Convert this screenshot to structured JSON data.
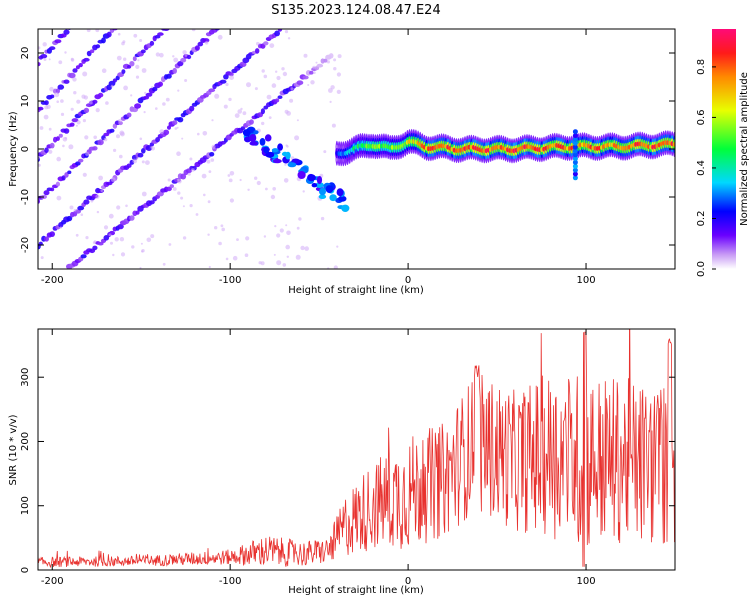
{
  "title": "S135.2023.124.08.47.E24",
  "chart_data": [
    {
      "type": "heatmap",
      "xlabel": "Height of straight line (km)",
      "ylabel": "Frequency (Hz)",
      "xlim": [
        -208,
        150
      ],
      "ylim": [
        -25,
        25
      ],
      "xticks": [
        -200,
        -100,
        0,
        100
      ],
      "yticks": [
        -20,
        -10,
        0,
        10,
        20
      ],
      "colorbar": {
        "label": "Normalized spectral amplitude",
        "range": [
          0,
          0.95
        ],
        "ticks": [
          "0.0",
          "0.2",
          "0.4",
          "0.6",
          "0.8"
        ]
      },
      "features": {
        "diagonal_lines": [
          {
            "x0": -208,
            "y0": -30,
            "slope": 0.3
          },
          {
            "x0": -208,
            "y0": -20,
            "slope": 0.33
          },
          {
            "x0": -208,
            "y0": -11,
            "slope": 0.36
          },
          {
            "x0": -208,
            "y0": -2,
            "slope": 0.38
          },
          {
            "x0": -208,
            "y0": 8,
            "slope": 0.4
          },
          {
            "x0": -208,
            "y0": 18,
            "slope": 0.42
          }
        ],
        "main_band": [
          {
            "x": -40,
            "y": -1,
            "amp": 0.25
          },
          {
            "x": -30,
            "y": 0,
            "amp": 0.45
          },
          {
            "x": -20,
            "y": 1,
            "amp": 0.55
          },
          {
            "x": -10,
            "y": 0,
            "amp": 0.6
          },
          {
            "x": 0,
            "y": 1.5,
            "amp": 0.65
          },
          {
            "x": 10,
            "y": 0.5,
            "amp": 0.8
          },
          {
            "x": 30,
            "y": 0,
            "amp": 0.85
          },
          {
            "x": 60,
            "y": 0,
            "amp": 0.85
          },
          {
            "x": 90,
            "y": 0.5,
            "amp": 0.8
          },
          {
            "x": 120,
            "y": 0.5,
            "amp": 0.8
          },
          {
            "x": 150,
            "y": 1,
            "amp": 0.85
          }
        ]
      }
    },
    {
      "type": "line",
      "xlabel": "Height of straight line (km)",
      "ylabel": "SNR (10 * v/v)",
      "xlim": [
        -208,
        150
      ],
      "ylim": [
        0,
        375
      ],
      "xticks": [
        -200,
        -100,
        0,
        100
      ],
      "yticks": [
        0,
        100,
        200,
        300
      ],
      "color": "#e8312e",
      "envelope": [
        {
          "x": -208,
          "base": 12,
          "spread": 8
        },
        {
          "x": -150,
          "base": 14,
          "spread": 8
        },
        {
          "x": -100,
          "base": 20,
          "spread": 12
        },
        {
          "x": -80,
          "base": 30,
          "spread": 25
        },
        {
          "x": -60,
          "base": 25,
          "spread": 20
        },
        {
          "x": -45,
          "base": 30,
          "spread": 20
        },
        {
          "x": -35,
          "base": 70,
          "spread": 50
        },
        {
          "x": -20,
          "base": 100,
          "spread": 70
        },
        {
          "x": 0,
          "base": 120,
          "spread": 90
        },
        {
          "x": 20,
          "base": 140,
          "spread": 90
        },
        {
          "x": 38,
          "base": 200,
          "spread": 110
        },
        {
          "x": 60,
          "base": 170,
          "spread": 110
        },
        {
          "x": 80,
          "base": 180,
          "spread": 130
        },
        {
          "x": 100,
          "base": 170,
          "spread": 140
        },
        {
          "x": 120,
          "base": 170,
          "spread": 130
        },
        {
          "x": 150,
          "base": 160,
          "spread": 130
        }
      ]
    }
  ]
}
